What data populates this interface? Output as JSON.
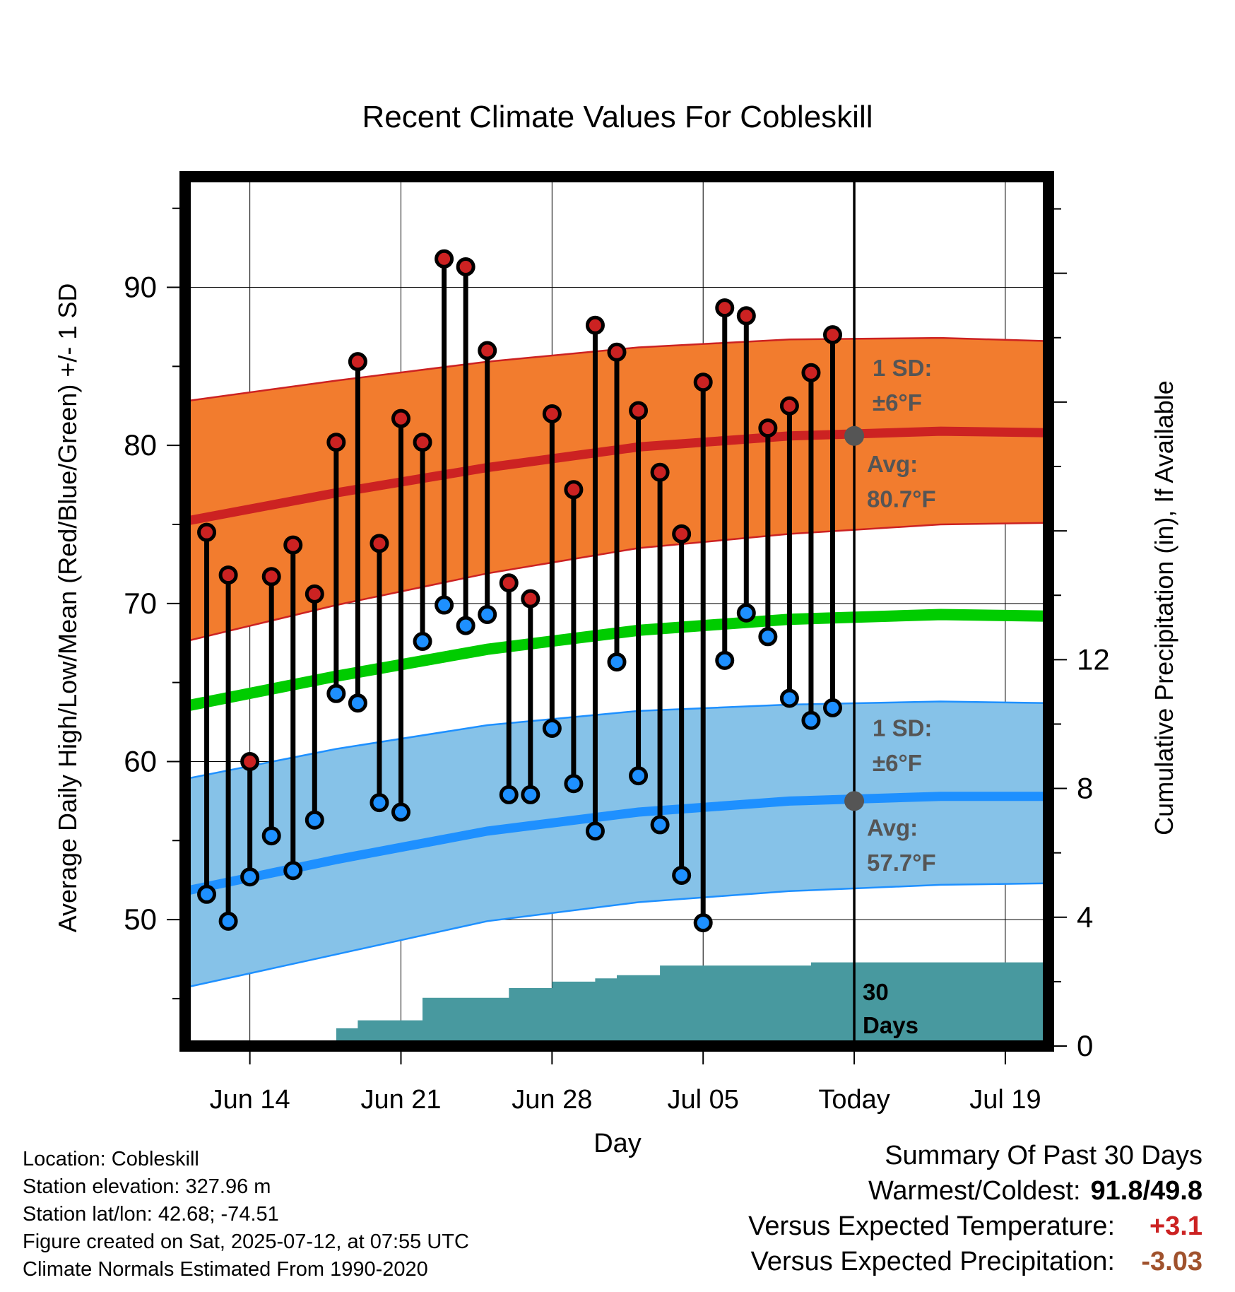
{
  "chart_data": {
    "type": "line",
    "title": "Recent Climate Values For Cobleskill",
    "xlabel": "Day",
    "ylabel": "Average Daily High/Low/Mean (Red/Blue/Green) +/- 1 SD",
    "y2label": "Cumulative Precipitation (in), If Available",
    "x_ticks": [
      "Jun 14",
      "Jun 21",
      "Jun 28",
      "Jul 05",
      "Today",
      "Jul 19"
    ],
    "x_range": [
      "2025-06-11",
      "2025-07-21"
    ],
    "ylim": [
      42,
      97
    ],
    "y_ticks": [
      50,
      60,
      70,
      80,
      90
    ],
    "y2lim": [
      0,
      27
    ],
    "y2_ticks": [
      0,
      4,
      8,
      12
    ],
    "grid": true,
    "today": "2025-07-12",
    "days": [
      "2025-06-12",
      "2025-06-13",
      "2025-06-14",
      "2025-06-15",
      "2025-06-16",
      "2025-06-17",
      "2025-06-18",
      "2025-06-19",
      "2025-06-20",
      "2025-06-21",
      "2025-06-22",
      "2025-06-23",
      "2025-06-24",
      "2025-06-25",
      "2025-06-26",
      "2025-06-27",
      "2025-06-28",
      "2025-06-29",
      "2025-06-30",
      "2025-07-01",
      "2025-07-02",
      "2025-07-03",
      "2025-07-04",
      "2025-07-05",
      "2025-07-06",
      "2025-07-07",
      "2025-07-08",
      "2025-07-09",
      "2025-07-10",
      "2025-07-11"
    ],
    "series": [
      {
        "name": "Daily High",
        "color": "#cc2222",
        "values": [
          74.5,
          71.8,
          60.0,
          71.7,
          73.7,
          70.6,
          80.2,
          85.3,
          73.8,
          81.7,
          80.2,
          91.8,
          91.3,
          86.0,
          71.3,
          70.3,
          82.0,
          77.2,
          87.6,
          85.9,
          82.2,
          78.3,
          74.4,
          84.0,
          88.7,
          88.2,
          81.1,
          82.5,
          84.6,
          87.0
        ]
      },
      {
        "name": "Daily Low",
        "color": "#1e90ff",
        "values": [
          51.6,
          49.9,
          52.7,
          55.3,
          53.1,
          56.3,
          64.3,
          63.7,
          57.4,
          56.8,
          67.6,
          69.9,
          68.6,
          69.3,
          57.9,
          57.9,
          62.1,
          58.6,
          55.6,
          66.3,
          59.1,
          56.0,
          52.8,
          49.8,
          66.4,
          69.4,
          67.9,
          64.0,
          62.6,
          63.4
        ]
      }
    ],
    "normals": {
      "dates": [
        "2025-06-11",
        "2025-06-18",
        "2025-06-25",
        "2025-07-02",
        "2025-07-09",
        "2025-07-16",
        "2025-07-21"
      ],
      "high_avg": [
        75.2,
        77.0,
        78.6,
        79.9,
        80.6,
        80.9,
        80.8
      ],
      "high_sd_upper": [
        82.8,
        84.1,
        85.3,
        86.2,
        86.7,
        86.8,
        86.6
      ],
      "high_sd_lower": [
        67.6,
        69.9,
        71.9,
        73.5,
        74.4,
        75.0,
        75.1
      ],
      "mean_avg": [
        63.5,
        65.4,
        67.1,
        68.3,
        69.0,
        69.3,
        69.2
      ],
      "low_avg": [
        51.8,
        53.8,
        55.6,
        56.8,
        57.5,
        57.8,
        57.8
      ],
      "low_sd_upper": [
        58.9,
        60.8,
        62.3,
        63.2,
        63.6,
        63.8,
        63.7
      ],
      "low_sd_lower": [
        45.7,
        47.8,
        49.9,
        51.1,
        51.8,
        52.2,
        52.3
      ]
    },
    "precip": {
      "x": [
        "2025-06-17",
        "2025-06-18",
        "2025-06-19",
        "2025-06-20",
        "2025-06-21",
        "2025-06-22",
        "2025-06-23",
        "2025-06-24",
        "2025-06-25",
        "2025-06-26",
        "2025-06-27",
        "2025-06-28",
        "2025-06-29",
        "2025-06-30",
        "2025-07-01",
        "2025-07-02",
        "2025-07-03",
        "2025-07-04",
        "2025-07-05",
        "2025-07-06",
        "2025-07-07",
        "2025-07-08",
        "2025-07-09",
        "2025-07-10",
        "2025-07-11",
        "2025-07-21"
      ],
      "values": [
        0.0,
        0.55,
        0.8,
        0.8,
        0.8,
        1.5,
        1.5,
        1.5,
        1.5,
        1.8,
        1.8,
        2.0,
        2.0,
        2.1,
        2.2,
        2.2,
        2.5,
        2.5,
        2.5,
        2.5,
        2.5,
        2.5,
        2.5,
        2.6,
        2.6,
        2.6
      ]
    },
    "annotations": {
      "high_sd_line1": "1 SD:",
      "high_sd_line2": "±6°F",
      "high_avg_line1": "Avg:",
      "high_avg_line2": "80.7°F",
      "low_sd_line1": "1 SD:",
      "low_sd_line2": "±6°F",
      "low_avg_line1": "Avg:",
      "low_avg_line2": "57.7°F",
      "period_line1": "30",
      "period_line2": "Days"
    },
    "colors": {
      "high_band": "#f27c2e",
      "high_avg": "#cc2222",
      "mean": "#00cc00",
      "low_band": "#86c2e8",
      "low_avg": "#1e90ff",
      "precip": "#48999f",
      "annotation": "#555555"
    }
  },
  "footer": {
    "location": "Location: Cobleskill",
    "elevation": "Station elevation: 327.96 m",
    "latlon": "Station lat/lon: 42.68; -74.51",
    "created": "Figure created on Sat, 2025-07-12, at 07:55 UTC",
    "normals": "Climate Normals Estimated From 1990-2020"
  },
  "summary": {
    "title": "Summary Of Past 30 Days",
    "warm_cold_label": "Warmest/Coldest:",
    "warm_cold_value": "91.8/49.8",
    "temp_label": "Versus Expected Temperature:",
    "temp_value": "+3.1",
    "temp_color": "#cc2222",
    "precip_label": "Versus Expected Precipitation:",
    "precip_value": "-3.03",
    "precip_color": "#a0522d"
  }
}
